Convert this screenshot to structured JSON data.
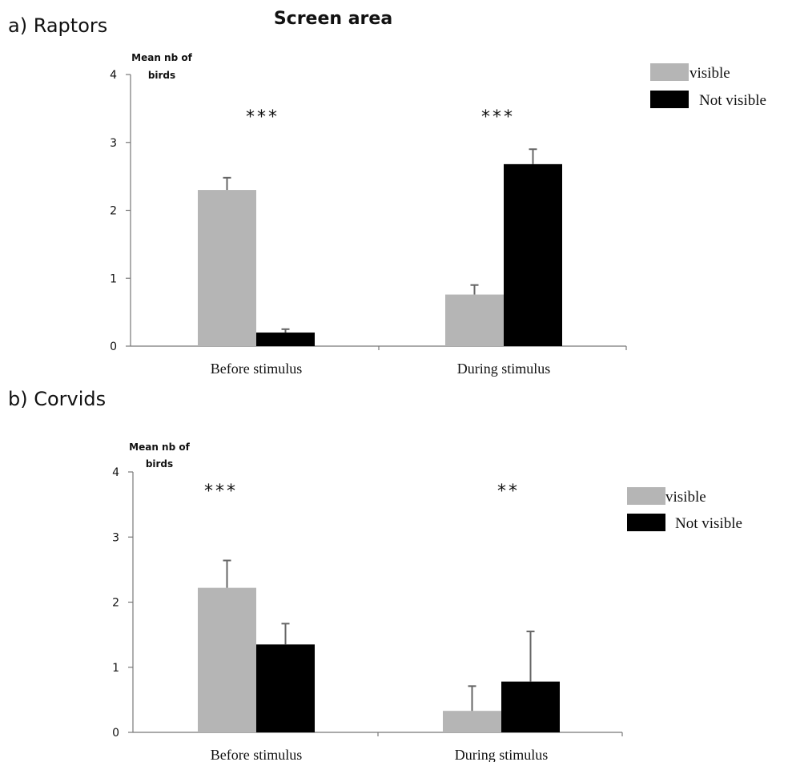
{
  "figure": {
    "title": "Screen area"
  },
  "chart_data": [
    {
      "type": "bar",
      "panel_label": "a) Raptors",
      "ylabel": [
        "Mean nb of",
        "birds"
      ],
      "ylim": [
        0,
        4
      ],
      "yticks": [
        0,
        1,
        2,
        3,
        4
      ],
      "categories": [
        "Before stimulus",
        "During stimulus"
      ],
      "series": [
        {
          "name": "visible",
          "color": "#b5b5b5",
          "values": [
            2.3,
            0.76
          ],
          "errors": [
            0.18,
            0.14
          ]
        },
        {
          "name": "Not visible",
          "color": "#000000",
          "values": [
            0.2,
            2.68
          ],
          "errors": [
            0.05,
            0.22
          ]
        }
      ],
      "significance": [
        "***",
        "***"
      ],
      "legend": "top-right",
      "grid": false
    },
    {
      "type": "bar",
      "panel_label": "b) Corvids",
      "ylabel": [
        "Mean nb of",
        "birds"
      ],
      "ylim": [
        0,
        4
      ],
      "yticks": [
        0,
        1,
        2,
        3,
        4
      ],
      "categories": [
        "Before stimulus",
        "During stimulus"
      ],
      "series": [
        {
          "name": "visible",
          "color": "#b5b5b5",
          "values": [
            2.22,
            0.33
          ],
          "errors": [
            0.42,
            0.38
          ]
        },
        {
          "name": "Not visible",
          "color": "#000000",
          "values": [
            1.35,
            0.78
          ],
          "errors": [
            0.32,
            0.77
          ]
        }
      ],
      "significance": [
        "***",
        "**"
      ],
      "legend": "top-right",
      "grid": false
    }
  ]
}
